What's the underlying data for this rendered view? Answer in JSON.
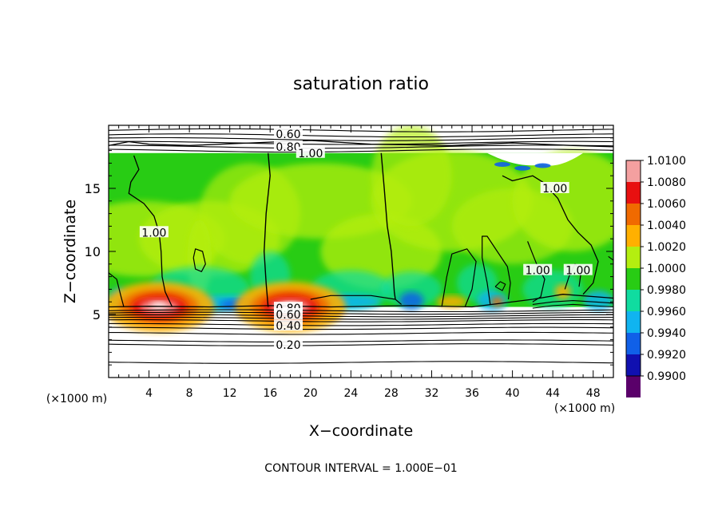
{
  "chart_data": {
    "type": "heatmap",
    "title": "saturation ratio",
    "xlabel": "X−coordinate",
    "ylabel": "Z−coordinate",
    "x_unit_label": "(×1000 m)",
    "y_unit_label": "(×1000 m)",
    "footer": "CONTOUR INTERVAL = 1.000E−01",
    "xlim": [
      0,
      50
    ],
    "ylim": [
      0,
      20
    ],
    "x_ticks": [
      4,
      8,
      12,
      16,
      20,
      24,
      28,
      32,
      36,
      40,
      44,
      48
    ],
    "y_ticks": [
      5,
      10,
      15
    ],
    "x_tick_labels": [
      "4",
      "8",
      "12",
      "16",
      "20",
      "24",
      "28",
      "32",
      "36",
      "40",
      "44",
      "48"
    ],
    "y_tick_labels": [
      "5",
      "10",
      "15"
    ],
    "colorbar": {
      "labels": [
        "1.0100",
        "1.0080",
        "1.0060",
        "1.0040",
        "1.0020",
        "1.0000",
        "0.9980",
        "0.9960",
        "0.9940",
        "0.9920",
        "0.9900"
      ],
      "values": [
        1.01,
        1.008,
        1.006,
        1.004,
        1.002,
        1.0,
        0.998,
        0.996,
        0.994,
        0.992,
        0.99
      ],
      "colors": [
        "#f4a0a0",
        "#e81010",
        "#f06a00",
        "#ffb000",
        "#b4ee10",
        "#28cc14",
        "#10dca0",
        "#10b4f0",
        "#1060e8",
        "#1010b0",
        "#5a006a"
      ]
    },
    "cloud_layer_z": [
      5.6,
      17.8
    ],
    "contour_labels": [
      {
        "text": "0.60",
        "x": 17.8,
        "z": 19.3
      },
      {
        "text": "0.80",
        "x": 17.8,
        "z": 18.3
      },
      {
        "text": "1.00",
        "x": 20.0,
        "z": 17.8
      },
      {
        "text": "1.00",
        "x": 4.5,
        "z": 11.5
      },
      {
        "text": "1.00",
        "x": 44.2,
        "z": 15.0
      },
      {
        "text": "1.00",
        "x": 42.5,
        "z": 8.5
      },
      {
        "text": "1.00",
        "x": 46.5,
        "z": 8.5
      },
      {
        "text": "0.80",
        "x": 17.8,
        "z": 5.5
      },
      {
        "text": "0.60",
        "x": 17.8,
        "z": 5.0
      },
      {
        "text": "0.40",
        "x": 17.8,
        "z": 4.1
      },
      {
        "text": "0.20",
        "x": 17.8,
        "z": 2.6
      }
    ],
    "grid": false,
    "legend": "colorbar-right"
  }
}
